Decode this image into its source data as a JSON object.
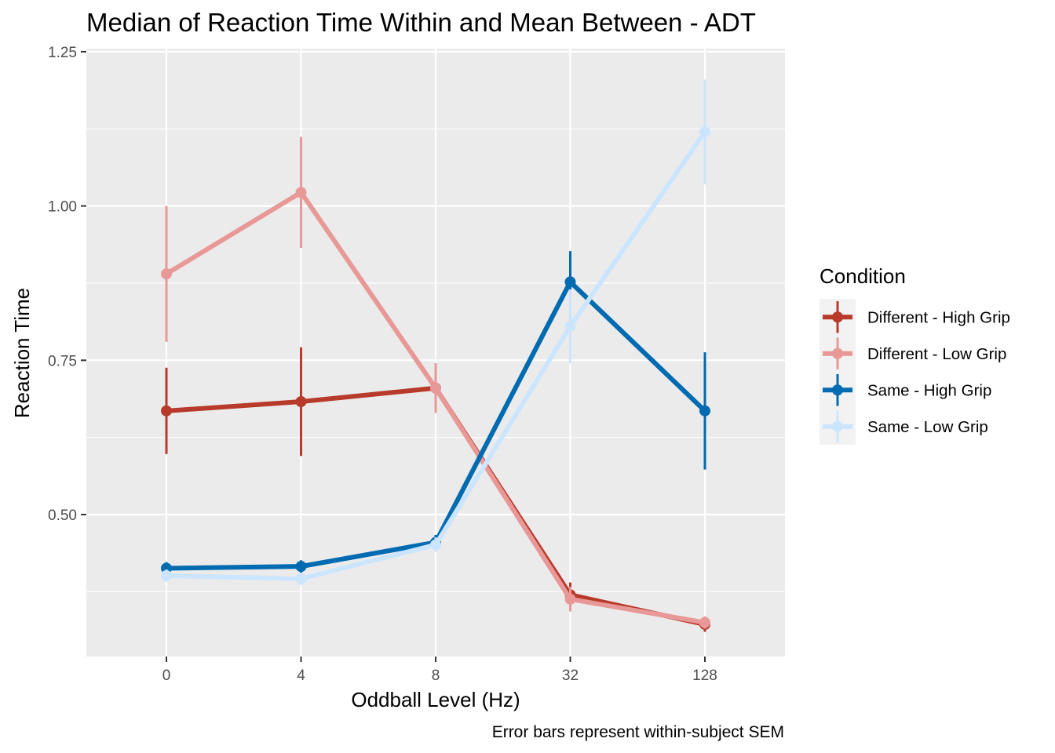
{
  "chart_data": {
    "type": "line",
    "title": "Median of Reaction Time Within and Mean Between - ADT",
    "xlabel": "Oddball Level (Hz)",
    "ylabel": "Reaction Time",
    "caption": "Error bars represent within-subject SEM",
    "categories": [
      "0",
      "4",
      "8",
      "32",
      "128"
    ],
    "y_ticks": [
      "0.50",
      "0.75",
      "1.00",
      "1.25"
    ],
    "ylim": [
      0.27,
      1.255
    ],
    "grid": true,
    "legend": {
      "title": "Condition",
      "position": "right"
    },
    "series": [
      {
        "name": "Different - High Grip",
        "color": "#B83A2A",
        "values": [
          0.668,
          0.683,
          0.705,
          0.37,
          0.322
        ],
        "sem": [
          0.07,
          0.088,
          0.04,
          0.02,
          0.012
        ]
      },
      {
        "name": "Different - Low Grip",
        "color": "#E89896",
        "values": [
          0.89,
          1.022,
          0.705,
          0.363,
          0.325
        ],
        "sem": [
          0.11,
          0.09,
          0.04,
          0.02,
          0.01
        ]
      },
      {
        "name": "Same - High Grip",
        "color": "#006BB0",
        "values": [
          0.413,
          0.416,
          0.455,
          0.877,
          0.668
        ],
        "sem": [
          0.01,
          0.01,
          0.012,
          0.05,
          0.095
        ]
      },
      {
        "name": "Same - Low Grip",
        "color": "#CCE5FF",
        "values": [
          0.401,
          0.396,
          0.451,
          0.805,
          1.12
        ],
        "sem": [
          0.01,
          0.01,
          0.012,
          0.06,
          0.085
        ]
      }
    ]
  }
}
